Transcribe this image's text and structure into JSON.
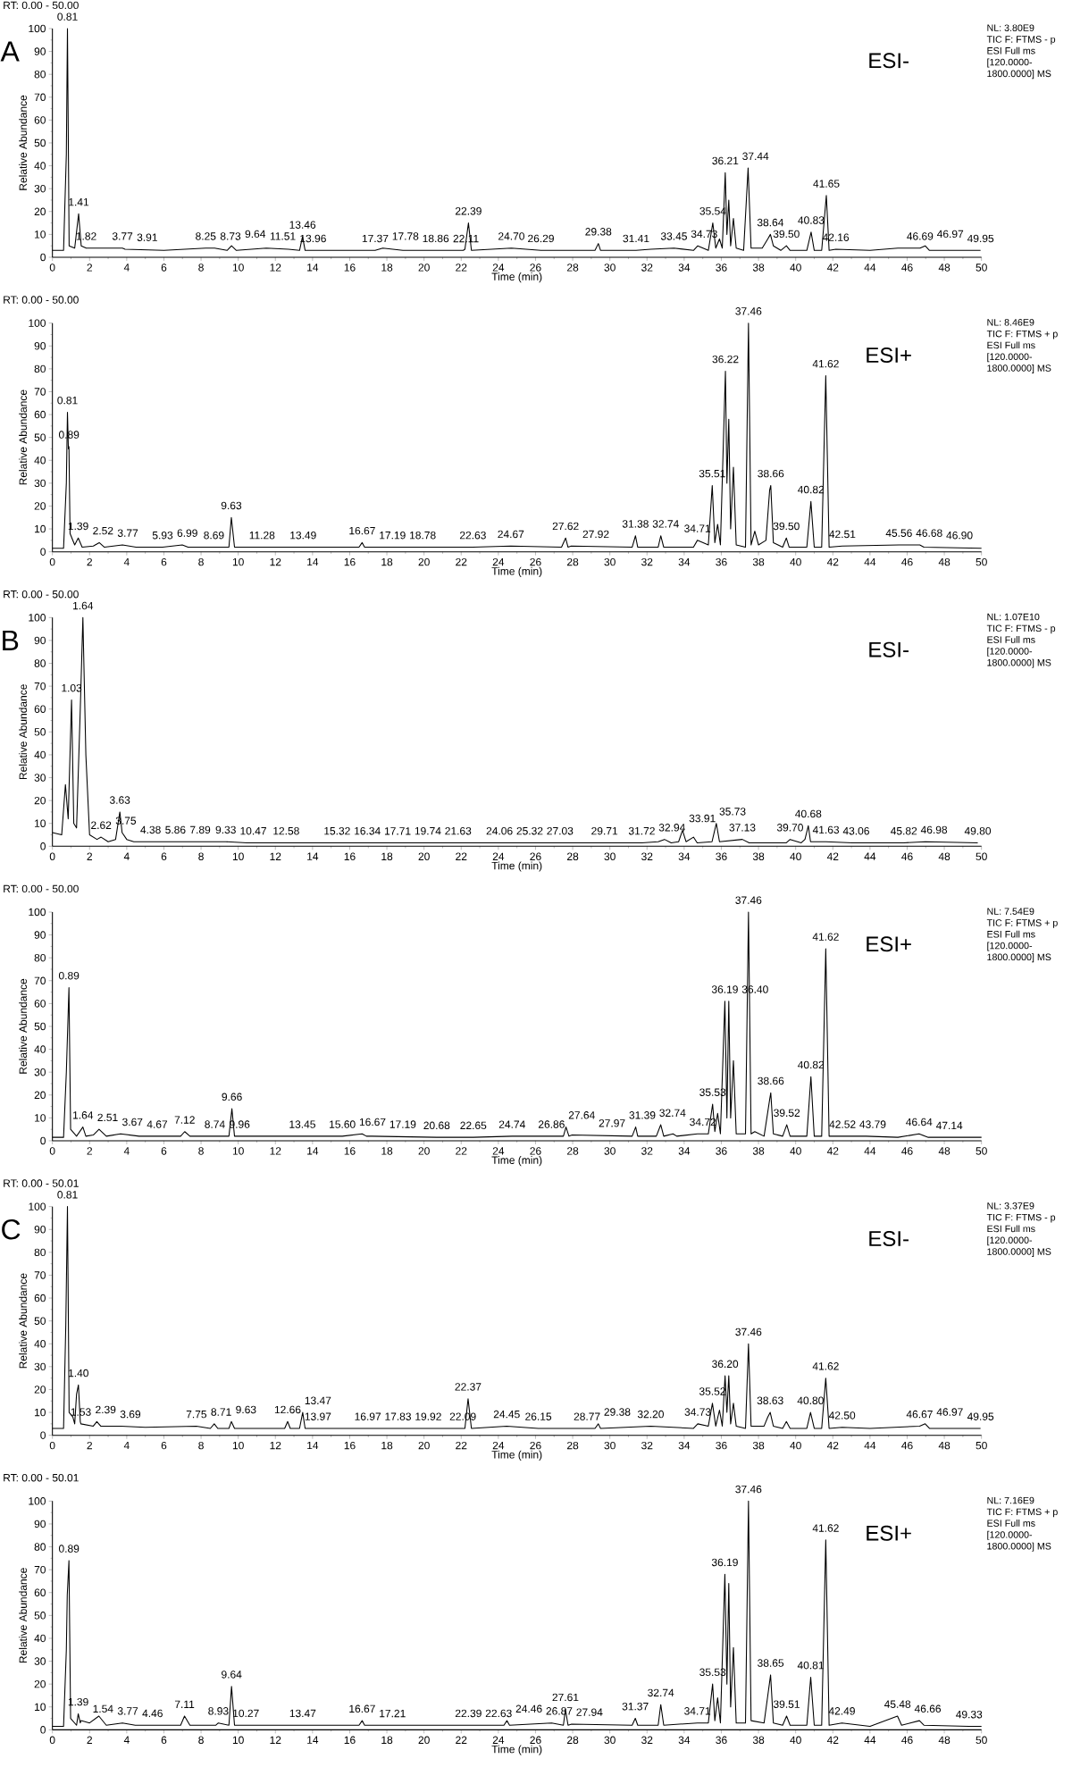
{
  "chart_data": [
    {
      "type": "line",
      "title": "A",
      "subtitle": "ESI-",
      "xlabel": "Time (min)",
      "ylabel": "Relative Abundance",
      "color": "#000000",
      "xlim": [
        0,
        50
      ],
      "ylim": [
        0,
        100
      ],
      "xticks": [
        0,
        2,
        4,
        6,
        8,
        10,
        12,
        14,
        16,
        18,
        20,
        22,
        24,
        26,
        28,
        30,
        32,
        34,
        36,
        38,
        40,
        42,
        44,
        46,
        48,
        50
      ],
      "yticks": [
        0,
        10,
        20,
        30,
        40,
        50,
        60,
        70,
        80,
        90,
        100
      ],
      "x": [
        0,
        0.6,
        0.75,
        0.81,
        0.9,
        1.2,
        1.41,
        1.55,
        1.82,
        2.5,
        3.77,
        3.91,
        6,
        8.25,
        8.73,
        9.4,
        9.64,
        9.9,
        11.51,
        12.7,
        13.3,
        13.46,
        13.6,
        13.96,
        17.37,
        17.78,
        18.86,
        22.11,
        22.2,
        22.39,
        22.55,
        24.7,
        26.29,
        29.2,
        29.38,
        29.5,
        31.41,
        32.2,
        33.45,
        34.5,
        34.73,
        35.3,
        35.54,
        35.7,
        35.9,
        36.05,
        36.21,
        36.3,
        36.4,
        36.5,
        36.65,
        36.8,
        37.2,
        37.44,
        37.6,
        38.2,
        38.5,
        38.64,
        38.8,
        39.2,
        39.5,
        39.7,
        40.6,
        40.83,
        41.0,
        41.4,
        41.65,
        41.8,
        42.16,
        44,
        45.5,
        46.69,
        46.97,
        47.2,
        49.95
      ],
      "values": [
        3,
        3,
        45,
        100,
        5,
        4,
        19,
        5,
        4,
        4,
        4,
        3.5,
        3,
        4,
        4,
        3,
        5,
        3,
        4,
        3.5,
        3,
        9,
        3,
        3,
        3,
        4,
        3,
        3,
        3.5,
        15,
        3,
        4,
        3,
        3,
        6,
        3,
        3,
        3.5,
        4,
        3,
        5,
        3,
        15,
        4,
        8,
        4,
        37,
        10,
        25,
        5,
        17,
        4,
        3,
        39,
        4,
        4,
        8,
        10,
        5,
        3,
        5,
        3,
        3,
        11,
        3,
        3,
        27,
        3,
        3.5,
        3,
        4,
        4,
        5,
        3,
        3
      ],
      "annotations": [
        "RT: 0.00 - 50.00",
        "NL: 3.80E9",
        "TIC F: FTMS - p",
        "ESI Full ms",
        "[120.0000-",
        "1800.0000] MS",
        {
          "text": "0.81",
          "x": 0.81,
          "y": 100
        },
        {
          "text": "1.41",
          "x": 1.41,
          "y": 19
        },
        {
          "text": "1.82",
          "x": 1.82,
          "y": 4
        },
        {
          "text": "3.77",
          "x": 3.77,
          "y": 4
        },
        {
          "text": "3.91",
          "x": 3.91,
          "y": 3.5
        },
        {
          "text": "8.25",
          "x": 8.25,
          "y": 4
        },
        {
          "text": "8.73",
          "x": 8.73,
          "y": 4
        },
        {
          "text": "9.64",
          "x": 9.64,
          "y": 5
        },
        {
          "text": "11.51",
          "x": 11.51,
          "y": 4
        },
        {
          "text": "13.46",
          "x": 13.46,
          "y": 9
        },
        {
          "text": "13.96",
          "x": 13.96,
          "y": 3
        },
        {
          "text": "17.37",
          "x": 17.37,
          "y": 3
        },
        {
          "text": "17.78",
          "x": 17.78,
          "y": 4
        },
        {
          "text": "18.86",
          "x": 18.86,
          "y": 3
        },
        {
          "text": "22.11",
          "x": 22.11,
          "y": 3
        },
        {
          "text": "22.39",
          "x": 22.39,
          "y": 15
        },
        {
          "text": "24.70",
          "x": 24.7,
          "y": 4
        },
        {
          "text": "26.29",
          "x": 26.29,
          "y": 3
        },
        {
          "text": "29.38",
          "x": 29.38,
          "y": 6
        },
        {
          "text": "31.41",
          "x": 31.41,
          "y": 3
        },
        {
          "text": "33.45",
          "x": 33.45,
          "y": 4
        },
        {
          "text": "34.73",
          "x": 34.73,
          "y": 5
        },
        {
          "text": "35.54",
          "x": 35.54,
          "y": 15
        },
        {
          "text": "36.21",
          "x": 36.21,
          "y": 37
        },
        {
          "text": "37.44",
          "x": 37.44,
          "y": 39
        },
        {
          "text": "38.64",
          "x": 38.64,
          "y": 10
        },
        {
          "text": "39.50",
          "x": 39.5,
          "y": 5
        },
        {
          "text": "40.83",
          "x": 40.83,
          "y": 11
        },
        {
          "text": "41.65",
          "x": 41.65,
          "y": 27
        },
        {
          "text": "42.16",
          "x": 42.16,
          "y": 3.5
        },
        {
          "text": "46.69",
          "x": 46.69,
          "y": 4
        },
        {
          "text": "46.97",
          "x": 46.97,
          "y": 5
        },
        {
          "text": "49.95",
          "x": 49.95,
          "y": 3
        }
      ]
    },
    {
      "type": "line",
      "subtitle": "ESI+",
      "xlabel": "Time (min)",
      "ylabel": "Relative Abundance",
      "color": "#000000",
      "xlim": [
        0,
        50
      ],
      "ylim": [
        0,
        100
      ],
      "xticks": [
        0,
        2,
        4,
        6,
        8,
        10,
        12,
        14,
        16,
        18,
        20,
        22,
        24,
        26,
        28,
        30,
        32,
        34,
        36,
        38,
        40,
        42,
        44,
        46,
        48,
        50
      ],
      "yticks": [
        0,
        10,
        20,
        30,
        40,
        50,
        60,
        70,
        80,
        90,
        100
      ],
      "x": [
        0,
        0.6,
        0.75,
        0.81,
        0.86,
        0.89,
        0.95,
        1.2,
        1.39,
        1.6,
        2.2,
        2.52,
        2.8,
        3.77,
        4.5,
        5.93,
        6.99,
        7.3,
        8.69,
        9.5,
        9.63,
        9.8,
        11.28,
        13.49,
        16.5,
        16.67,
        16.8,
        17.19,
        18.78,
        22.63,
        24.67,
        27.4,
        27.62,
        27.75,
        27.92,
        31.2,
        31.38,
        31.5,
        32.6,
        32.74,
        32.9,
        34.5,
        34.71,
        35.3,
        35.51,
        35.65,
        35.8,
        35.95,
        36.22,
        36.3,
        36.4,
        36.5,
        36.65,
        36.8,
        37.3,
        37.46,
        37.6,
        37.8,
        38.0,
        38.4,
        38.6,
        38.66,
        38.8,
        39.3,
        39.5,
        39.65,
        40.6,
        40.82,
        41.0,
        41.4,
        41.62,
        41.8,
        42.51,
        45.56,
        46.68,
        46.9,
        50
      ],
      "values": [
        1.5,
        1.5,
        30,
        61,
        45,
        46,
        8,
        3,
        6,
        2,
        2.5,
        4,
        2,
        3,
        2,
        2,
        3,
        2,
        2,
        2,
        15,
        2,
        2,
        2,
        2,
        4,
        2,
        2,
        2,
        2,
        2.5,
        2,
        6,
        2,
        2.5,
        2,
        7,
        2,
        2,
        7,
        2,
        2,
        5,
        3,
        29,
        4,
        12,
        3,
        79,
        30,
        58,
        10,
        37,
        3,
        2,
        100,
        3,
        9,
        3,
        5,
        27,
        29,
        4,
        2,
        6,
        2,
        2,
        22,
        2,
        2,
        77,
        2,
        2.5,
        3,
        3,
        2,
        1.5
      ],
      "annotations": [
        "RT: 0.00 - 50.00",
        "NL: 8.46E9",
        "TIC F: FTMS + p",
        "ESI Full ms",
        "[120.0000-",
        "1800.0000] MS",
        {
          "text": "0.81",
          "x": 0.81,
          "y": 61
        },
        {
          "text": "0.89",
          "x": 0.89,
          "y": 46
        },
        {
          "text": "1.39",
          "x": 1.39,
          "y": 6
        },
        {
          "text": "2.52",
          "x": 2.52,
          "y": 4
        },
        {
          "text": "3.77",
          "x": 3.77,
          "y": 3
        },
        {
          "text": "5.93",
          "x": 5.93,
          "y": 2
        },
        {
          "text": "6.99",
          "x": 6.99,
          "y": 3
        },
        {
          "text": "8.69",
          "x": 8.69,
          "y": 2
        },
        {
          "text": "9.63",
          "x": 9.63,
          "y": 15
        },
        {
          "text": "11.28",
          "x": 11.28,
          "y": 2
        },
        {
          "text": "13.49",
          "x": 13.49,
          "y": 2
        },
        {
          "text": "16.67",
          "x": 16.67,
          "y": 4
        },
        {
          "text": "17.19",
          "x": 17.19,
          "y": 2
        },
        {
          "text": "18.78",
          "x": 18.78,
          "y": 2
        },
        {
          "text": "22.63",
          "x": 22.63,
          "y": 2
        },
        {
          "text": "24.67",
          "x": 24.67,
          "y": 2.5
        },
        {
          "text": "27.62",
          "x": 27.62,
          "y": 6
        },
        {
          "text": "27.92",
          "x": 27.92,
          "y": 2.5
        },
        {
          "text": "31.38",
          "x": 31.38,
          "y": 7
        },
        {
          "text": "32.74",
          "x": 32.74,
          "y": 7
        },
        {
          "text": "34.71",
          "x": 34.71,
          "y": 5
        },
        {
          "text": "35.51",
          "x": 35.51,
          "y": 29
        },
        {
          "text": "36.22",
          "x": 36.22,
          "y": 79
        },
        {
          "text": "37.46",
          "x": 37.46,
          "y": 100
        },
        {
          "text": "38.66",
          "x": 38.66,
          "y": 29
        },
        {
          "text": "39.50",
          "x": 39.5,
          "y": 6
        },
        {
          "text": "40.82",
          "x": 40.82,
          "y": 22
        },
        {
          "text": "41.62",
          "x": 41.62,
          "y": 77
        },
        {
          "text": "42.51",
          "x": 42.51,
          "y": 2.5
        },
        {
          "text": "45.56",
          "x": 45.56,
          "y": 3
        },
        {
          "text": "46.68",
          "x": 46.68,
          "y": 3
        },
        {
          "text": "46.90",
          "x": 46.9,
          "y": 2
        }
      ]
    },
    {
      "type": "line",
      "title": "B",
      "subtitle": "ESI-",
      "xlabel": "Time (min)",
      "ylabel": "Relative Abundance",
      "color": "#000000",
      "xlim": [
        0,
        50
      ],
      "ylim": [
        0,
        100
      ],
      "xticks": [
        0,
        2,
        4,
        6,
        8,
        10,
        12,
        14,
        16,
        18,
        20,
        22,
        24,
        26,
        28,
        30,
        32,
        34,
        36,
        38,
        40,
        42,
        44,
        46,
        48,
        50
      ],
      "yticks": [
        0,
        10,
        20,
        30,
        40,
        50,
        60,
        70,
        80,
        90,
        100
      ],
      "x": [
        0,
        0.5,
        0.7,
        0.85,
        1.03,
        1.15,
        1.3,
        1.5,
        1.64,
        1.8,
        2.0,
        2.4,
        2.62,
        3.0,
        3.4,
        3.63,
        3.75,
        4.0,
        4.38,
        5.86,
        7.89,
        9.33,
        10.47,
        12.58,
        15.32,
        16.34,
        17.71,
        19.74,
        21.63,
        24.06,
        25.32,
        27.03,
        29.71,
        31.72,
        32.6,
        32.94,
        33.3,
        33.7,
        33.91,
        34.1,
        34.5,
        34.7,
        35.5,
        35.73,
        35.9,
        37.13,
        37.5,
        39.5,
        39.7,
        40.3,
        40.5,
        40.68,
        40.8,
        41.63,
        43.06,
        45.82,
        46.98,
        49.8
      ],
      "values": [
        6,
        5,
        27,
        12,
        64,
        10,
        8,
        60,
        100,
        40,
        5,
        3,
        4,
        2,
        3,
        15,
        6,
        3,
        2,
        2,
        2,
        2,
        1.5,
        1.5,
        1.5,
        1.5,
        1.5,
        1.5,
        1.5,
        1.5,
        1.5,
        1.5,
        1.5,
        1.5,
        2,
        3,
        1.5,
        2,
        7,
        2,
        4,
        1.5,
        2,
        10,
        2,
        3,
        1.5,
        1.5,
        3,
        1.5,
        3,
        9,
        2,
        2,
        1.5,
        1.5,
        2,
        1.5
      ],
      "annotations": [
        "RT: 0.00 - 50.00",
        "NL: 1.07E10",
        "TIC F: FTMS - p",
        "ESI Full ms",
        "[120.0000-",
        "1800.0000] MS",
        {
          "text": "1.03",
          "x": 1.03,
          "y": 64
        },
        {
          "text": "1.64",
          "x": 1.64,
          "y": 100
        },
        {
          "text": "2.62",
          "x": 2.62,
          "y": 4
        },
        {
          "text": "3.63",
          "x": 3.63,
          "y": 15
        },
        {
          "text": "3.75",
          "x": 3.75,
          "y": 6
        },
        {
          "text": "4.38",
          "x": 4.38,
          "y": 2
        },
        {
          "text": "5.86",
          "x": 5.86,
          "y": 2
        },
        {
          "text": "7.89",
          "x": 7.89,
          "y": 2
        },
        {
          "text": "9.33",
          "x": 9.33,
          "y": 2
        },
        {
          "text": "10.47",
          "x": 10.47,
          "y": 1.5
        },
        {
          "text": "12.58",
          "x": 12.58,
          "y": 1.5
        },
        {
          "text": "15.32",
          "x": 15.32,
          "y": 1.5
        },
        {
          "text": "16.34",
          "x": 16.34,
          "y": 1.5
        },
        {
          "text": "17.71",
          "x": 17.71,
          "y": 1.5
        },
        {
          "text": "19.74",
          "x": 19.74,
          "y": 1.5
        },
        {
          "text": "21.63",
          "x": 21.63,
          "y": 1.5
        },
        {
          "text": "24.06",
          "x": 24.06,
          "y": 1.5
        },
        {
          "text": "25.32",
          "x": 25.32,
          "y": 1.5
        },
        {
          "text": "27.03",
          "x": 27.03,
          "y": 1.5
        },
        {
          "text": "29.71",
          "x": 29.71,
          "y": 1.5
        },
        {
          "text": "31.72",
          "x": 31.72,
          "y": 1.5
        },
        {
          "text": "32.94",
          "x": 32.94,
          "y": 3
        },
        {
          "text": "33.91",
          "x": 33.91,
          "y": 7
        },
        {
          "text": "35.73",
          "x": 35.73,
          "y": 10
        },
        {
          "text": "37.13",
          "x": 37.13,
          "y": 3
        },
        {
          "text": "39.70",
          "x": 39.7,
          "y": 3
        },
        {
          "text": "40.68",
          "x": 40.68,
          "y": 9
        },
        {
          "text": "41.63",
          "x": 41.63,
          "y": 2
        },
        {
          "text": "43.06",
          "x": 43.06,
          "y": 1.5
        },
        {
          "text": "45.82",
          "x": 45.82,
          "y": 1.5
        },
        {
          "text": "46.98",
          "x": 46.98,
          "y": 2
        },
        {
          "text": "49.80",
          "x": 49.8,
          "y": 1.5
        }
      ]
    },
    {
      "type": "line",
      "subtitle": "ESI+",
      "xlabel": "Time (min)",
      "ylabel": "Relative Abundance",
      "color": "#000000",
      "xlim": [
        0,
        50
      ],
      "ylim": [
        0,
        100
      ],
      "xticks": [
        0,
        2,
        4,
        6,
        8,
        10,
        12,
        14,
        16,
        18,
        20,
        22,
        24,
        26,
        28,
        30,
        32,
        34,
        36,
        38,
        40,
        42,
        44,
        46,
        48,
        50
      ],
      "yticks": [
        0,
        10,
        20,
        30,
        40,
        50,
        60,
        70,
        80,
        90,
        100
      ],
      "x": [
        0,
        0.6,
        0.75,
        0.89,
        0.98,
        1.3,
        1.64,
        1.8,
        2.2,
        2.51,
        2.9,
        3.67,
        4.67,
        6.9,
        7.12,
        7.4,
        8.74,
        9.5,
        9.66,
        9.8,
        9.96,
        13.45,
        15.6,
        16.67,
        16.9,
        17.19,
        20.68,
        22.65,
        24.74,
        26.86,
        27.5,
        27.64,
        27.8,
        27.97,
        31.2,
        31.39,
        31.5,
        32.5,
        32.74,
        32.9,
        33.4,
        33.6,
        34.72,
        35.3,
        35.53,
        35.65,
        35.8,
        35.95,
        36.19,
        36.3,
        36.4,
        36.5,
        36.65,
        36.8,
        37.3,
        37.46,
        37.6,
        37.8,
        38.3,
        38.6,
        38.66,
        38.8,
        39.3,
        39.52,
        39.7,
        40.6,
        40.82,
        41.0,
        41.4,
        41.62,
        41.8,
        42.52,
        43.79,
        45.5,
        46.64,
        47.14,
        50
      ],
      "values": [
        1.5,
        1.5,
        30,
        67,
        5,
        2,
        6,
        2,
        2.5,
        5,
        2,
        3,
        2,
        2,
        4,
        2,
        2,
        2,
        14,
        2,
        2,
        2,
        2,
        3,
        2,
        2,
        1.5,
        1.5,
        2,
        2,
        2,
        6,
        2,
        2.5,
        2,
        6,
        2,
        2,
        7,
        2,
        3,
        2,
        3,
        3,
        16,
        4,
        12,
        3,
        61,
        10,
        61,
        10,
        35,
        3,
        3,
        100,
        3,
        4,
        2,
        18,
        21,
        3,
        2,
        7,
        2,
        2,
        28,
        2,
        2,
        84,
        2,
        2,
        2,
        1.5,
        3,
        1.5,
        1.5
      ],
      "annotations": [
        "RT: 0.00 - 50.00",
        "NL: 7.54E9",
        "TIC F: FTMS + p",
        "ESI Full ms",
        "[120.0000-",
        "1800.0000] MS",
        {
          "text": "0.89",
          "x": 0.89,
          "y": 67
        },
        {
          "text": "1.64",
          "x": 1.64,
          "y": 6
        },
        {
          "text": "2.51",
          "x": 2.51,
          "y": 5
        },
        {
          "text": "3.67",
          "x": 3.67,
          "y": 3
        },
        {
          "text": "4.67",
          "x": 4.67,
          "y": 2
        },
        {
          "text": "7.12",
          "x": 7.12,
          "y": 4
        },
        {
          "text": "8.74",
          "x": 8.74,
          "y": 2
        },
        {
          "text": "9.66",
          "x": 9.66,
          "y": 14
        },
        {
          "text": "9.96",
          "x": 9.96,
          "y": 2
        },
        {
          "text": "13.45",
          "x": 13.45,
          "y": 2
        },
        {
          "text": "15.60",
          "x": 15.6,
          "y": 2
        },
        {
          "text": "16.67",
          "x": 16.67,
          "y": 3
        },
        {
          "text": "17.19",
          "x": 17.19,
          "y": 2
        },
        {
          "text": "20.68",
          "x": 20.68,
          "y": 1.5
        },
        {
          "text": "22.65",
          "x": 22.65,
          "y": 1.5
        },
        {
          "text": "24.74",
          "x": 24.74,
          "y": 2
        },
        {
          "text": "26.86",
          "x": 26.86,
          "y": 2
        },
        {
          "text": "27.64",
          "x": 27.64,
          "y": 6
        },
        {
          "text": "27.97",
          "x": 27.97,
          "y": 2.5
        },
        {
          "text": "31.39",
          "x": 31.39,
          "y": 6
        },
        {
          "text": "32.74",
          "x": 32.74,
          "y": 7
        },
        {
          "text": "34.72",
          "x": 34.72,
          "y": 3
        },
        {
          "text": "35.53",
          "x": 35.53,
          "y": 16
        },
        {
          "text": "36.19",
          "x": 36.19,
          "y": 61
        },
        {
          "text": "36.40",
          "x": 36.4,
          "y": 61
        },
        {
          "text": "37.46",
          "x": 37.46,
          "y": 100
        },
        {
          "text": "38.66",
          "x": 38.66,
          "y": 21
        },
        {
          "text": "39.52",
          "x": 39.52,
          "y": 7
        },
        {
          "text": "40.82",
          "x": 40.82,
          "y": 28
        },
        {
          "text": "41.62",
          "x": 41.62,
          "y": 84
        },
        {
          "text": "42.52",
          "x": 42.52,
          "y": 2
        },
        {
          "text": "43.79",
          "x": 43.79,
          "y": 2
        },
        {
          "text": "46.64",
          "x": 46.64,
          "y": 3
        },
        {
          "text": "47.14",
          "x": 47.14,
          "y": 1.5
        }
      ]
    },
    {
      "type": "line",
      "title": "C",
      "subtitle": "ESI-",
      "xlabel": "Time (min)",
      "ylabel": "Relative Abundance",
      "color": "#000000",
      "xlim": [
        0,
        50
      ],
      "ylim": [
        0,
        100
      ],
      "xticks": [
        0,
        2,
        4,
        6,
        8,
        10,
        12,
        14,
        16,
        18,
        20,
        22,
        24,
        26,
        28,
        30,
        32,
        34,
        36,
        38,
        40,
        42,
        44,
        46,
        48,
        50
      ],
      "yticks": [
        0,
        10,
        20,
        30,
        40,
        50,
        60,
        70,
        80,
        90,
        100
      ],
      "x": [
        0,
        0.6,
        0.72,
        0.81,
        0.9,
        1.1,
        1.2,
        1.3,
        1.4,
        1.5,
        1.53,
        2.2,
        2.39,
        2.6,
        3.69,
        5,
        7.75,
        8.5,
        8.71,
        8.9,
        9.5,
        9.63,
        9.8,
        12.5,
        12.66,
        12.8,
        13.3,
        13.47,
        13.6,
        13.97,
        16.97,
        17.83,
        19.92,
        22.09,
        22.2,
        22.37,
        22.55,
        24.45,
        26.15,
        28.77,
        29.2,
        29.38,
        29.5,
        32.2,
        34.5,
        34.73,
        35.3,
        35.52,
        35.7,
        35.9,
        36.05,
        36.2,
        36.3,
        36.4,
        36.5,
        36.65,
        36.8,
        37.3,
        37.46,
        37.6,
        38.3,
        38.5,
        38.63,
        38.8,
        39.3,
        39.5,
        39.7,
        40.6,
        40.8,
        41.0,
        41.4,
        41.62,
        41.8,
        42.5,
        44,
        46.67,
        46.97,
        47.2,
        49.95
      ],
      "values": [
        3,
        3,
        48,
        100,
        10,
        8,
        5,
        18,
        22,
        6,
        5,
        4,
        6,
        4,
        4,
        3.5,
        4,
        3,
        5,
        3,
        3,
        6,
        3,
        3,
        6,
        3,
        3,
        10,
        3,
        3,
        3,
        3,
        3,
        3,
        3,
        16,
        3,
        4,
        3,
        3,
        3,
        5,
        3,
        4,
        3,
        5,
        4,
        14,
        4,
        11,
        4,
        26,
        10,
        26,
        5,
        14,
        4,
        3,
        40,
        4,
        4,
        8,
        10,
        4,
        3,
        6,
        3,
        3,
        10,
        3,
        3,
        25,
        3,
        3.5,
        3,
        4,
        5,
        3,
        3
      ],
      "annotations": [
        "RT: 0.00 - 50.01",
        "NL: 3.37E9",
        "TIC F: FTMS - p",
        "ESI Full ms",
        "[120.0000-",
        "1800.0000] MS",
        {
          "text": "0.81",
          "x": 0.81,
          "y": 100
        },
        {
          "text": "1.40",
          "x": 1.4,
          "y": 22
        },
        {
          "text": "1.53",
          "x": 1.53,
          "y": 5
        },
        {
          "text": "2.39",
          "x": 2.39,
          "y": 6
        },
        {
          "text": "3.69",
          "x": 3.69,
          "y": 4
        },
        {
          "text": "7.75",
          "x": 7.75,
          "y": 4
        },
        {
          "text": "8.71",
          "x": 8.71,
          "y": 5
        },
        {
          "text": "9.63",
          "x": 9.63,
          "y": 6
        },
        {
          "text": "12.66",
          "x": 12.66,
          "y": 6
        },
        {
          "text": "13.47",
          "x": 13.47,
          "y": 10
        },
        {
          "text": "13.97",
          "x": 13.97,
          "y": 3
        },
        {
          "text": "16.97",
          "x": 16.97,
          "y": 3
        },
        {
          "text": "17.83",
          "x": 17.83,
          "y": 3
        },
        {
          "text": "19.92",
          "x": 19.92,
          "y": 3
        },
        {
          "text": "22.09",
          "x": 22.09,
          "y": 3
        },
        {
          "text": "22.37",
          "x": 22.37,
          "y": 16
        },
        {
          "text": "24.45",
          "x": 24.45,
          "y": 4
        },
        {
          "text": "26.15",
          "x": 26.15,
          "y": 3
        },
        {
          "text": "28.77",
          "x": 28.77,
          "y": 3
        },
        {
          "text": "29.38",
          "x": 29.38,
          "y": 5
        },
        {
          "text": "32.20",
          "x": 32.2,
          "y": 4
        },
        {
          "text": "34.73",
          "x": 34.73,
          "y": 5
        },
        {
          "text": "35.52",
          "x": 35.52,
          "y": 14
        },
        {
          "text": "36.20",
          "x": 36.2,
          "y": 26
        },
        {
          "text": "37.46",
          "x": 37.46,
          "y": 40
        },
        {
          "text": "38.63",
          "x": 38.63,
          "y": 10
        },
        {
          "text": "40.80",
          "x": 40.8,
          "y": 10
        },
        {
          "text": "41.62",
          "x": 41.62,
          "y": 25
        },
        {
          "text": "42.50",
          "x": 42.5,
          "y": 3.5
        },
        {
          "text": "46.67",
          "x": 46.67,
          "y": 4
        },
        {
          "text": "46.97",
          "x": 46.97,
          "y": 5
        },
        {
          "text": "49.95",
          "x": 49.95,
          "y": 3
        }
      ]
    },
    {
      "type": "line",
      "subtitle": "ESI+",
      "xlabel": "Time (min)",
      "ylabel": "Relative Abundance",
      "color": "#000000",
      "xlim": [
        0,
        50
      ],
      "ylim": [
        0,
        100
      ],
      "xticks": [
        0,
        2,
        4,
        6,
        8,
        10,
        12,
        14,
        16,
        18,
        20,
        22,
        24,
        26,
        28,
        30,
        32,
        34,
        36,
        38,
        40,
        42,
        44,
        46,
        48,
        50
      ],
      "yticks": [
        0,
        10,
        20,
        30,
        40,
        50,
        60,
        70,
        80,
        90,
        100
      ],
      "x": [
        0,
        0.6,
        0.75,
        0.8,
        0.89,
        0.98,
        1.3,
        1.39,
        1.5,
        1.54,
        2.0,
        2.5,
        2.9,
        3.77,
        4.46,
        6.9,
        7.11,
        7.4,
        8.8,
        8.93,
        9.5,
        9.64,
        9.8,
        10.27,
        13.47,
        16.5,
        16.67,
        16.8,
        17.21,
        22.39,
        22.63,
        24.3,
        24.46,
        24.6,
        26.87,
        27.5,
        27.61,
        27.75,
        27.94,
        31.2,
        31.37,
        31.5,
        32.6,
        32.74,
        32.9,
        34.71,
        35.3,
        35.53,
        35.65,
        35.8,
        35.95,
        36.19,
        36.3,
        36.4,
        36.5,
        36.65,
        36.8,
        37.3,
        37.46,
        37.6,
        38.3,
        38.5,
        38.65,
        38.8,
        39.3,
        39.51,
        39.7,
        40.6,
        40.81,
        41.0,
        41.4,
        41.62,
        41.8,
        42.49,
        44,
        45.48,
        45.7,
        46.66,
        46.9,
        49.33,
        50
      ],
      "values": [
        1.5,
        1.5,
        35,
        59,
        74,
        5,
        2,
        7,
        3,
        4,
        3,
        6,
        2,
        3,
        2,
        2,
        6,
        2,
        2,
        3,
        2,
        19,
        2,
        2,
        2,
        2,
        4,
        2,
        2,
        2,
        2,
        2,
        4,
        2,
        3,
        2,
        9,
        2,
        2.5,
        2,
        5,
        2,
        2,
        11,
        2,
        3,
        3,
        20,
        4,
        14,
        3,
        68,
        20,
        64,
        10,
        36,
        3,
        3,
        100,
        4,
        3,
        15,
        24,
        3,
        2,
        6,
        2,
        2,
        23,
        2,
        2,
        83,
        2,
        3,
        1.5,
        6,
        2,
        4,
        2,
        1.5,
        1.5
      ],
      "annotations": [
        "RT: 0.00 - 50.01",
        "NL: 7.16E9",
        "TIC F: FTMS + p",
        "ESI Full ms",
        "[120.0000-",
        "1800.0000] MS",
        {
          "text": "0.89",
          "x": 0.89,
          "y": 74
        },
        {
          "text": "1.39",
          "x": 1.39,
          "y": 7
        },
        {
          "text": "1.54",
          "x": 1.54,
          "y": 4
        },
        {
          "text": "3.77",
          "x": 3.77,
          "y": 3
        },
        {
          "text": "4.46",
          "x": 4.46,
          "y": 2
        },
        {
          "text": "7.11",
          "x": 7.11,
          "y": 6
        },
        {
          "text": "8.93",
          "x": 8.93,
          "y": 3
        },
        {
          "text": "9.64",
          "x": 9.64,
          "y": 19
        },
        {
          "text": "10.27",
          "x": 10.27,
          "y": 2
        },
        {
          "text": "13.47",
          "x": 13.47,
          "y": 2
        },
        {
          "text": "16.67",
          "x": 16.67,
          "y": 4
        },
        {
          "text": "17.21",
          "x": 17.21,
          "y": 2
        },
        {
          "text": "22.39",
          "x": 22.39,
          "y": 2
        },
        {
          "text": "22.63",
          "x": 22.63,
          "y": 2
        },
        {
          "text": "24.46",
          "x": 24.46,
          "y": 4
        },
        {
          "text": "26.87",
          "x": 26.87,
          "y": 3
        },
        {
          "text": "27.61",
          "x": 27.61,
          "y": 9
        },
        {
          "text": "27.94",
          "x": 27.94,
          "y": 2.5
        },
        {
          "text": "31.37",
          "x": 31.37,
          "y": 5
        },
        {
          "text": "32.74",
          "x": 32.74,
          "y": 11
        },
        {
          "text": "34.71",
          "x": 34.71,
          "y": 3
        },
        {
          "text": "35.53",
          "x": 35.53,
          "y": 20
        },
        {
          "text": "36.19",
          "x": 36.19,
          "y": 68
        },
        {
          "text": "37.46",
          "x": 37.46,
          "y": 100
        },
        {
          "text": "38.65",
          "x": 38.65,
          "y": 24
        },
        {
          "text": "39.51",
          "x": 39.51,
          "y": 6
        },
        {
          "text": "40.81",
          "x": 40.81,
          "y": 23
        },
        {
          "text": "41.62",
          "x": 41.62,
          "y": 83
        },
        {
          "text": "42.49",
          "x": 42.49,
          "y": 3
        },
        {
          "text": "45.48",
          "x": 45.48,
          "y": 6
        },
        {
          "text": "46.66",
          "x": 46.66,
          "y": 4
        },
        {
          "text": "49.33",
          "x": 49.33,
          "y": 1.5
        }
      ]
    }
  ]
}
